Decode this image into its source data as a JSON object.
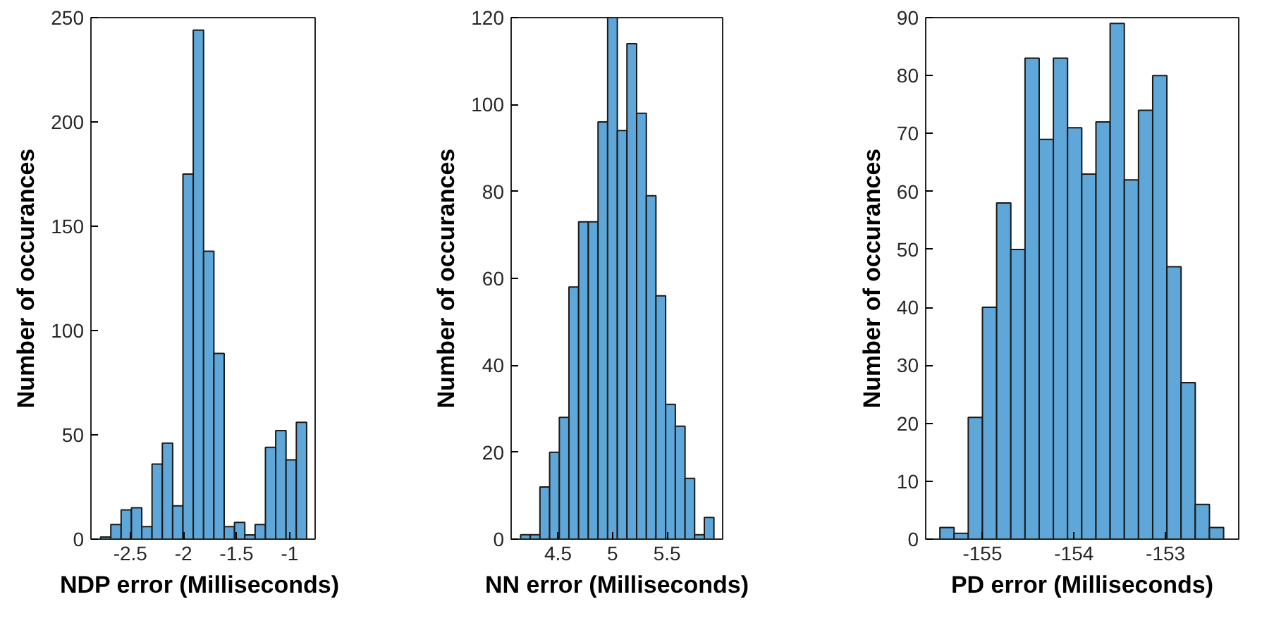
{
  "chart_data": [
    {
      "type": "histogram",
      "xlabel": "NDP error  (Milliseconds)",
      "ylabel": "Number of occurances",
      "color": "#5fa7d8",
      "bins": [
        -2.78,
        -2.683,
        -2.586,
        -2.489,
        -2.392,
        -2.295,
        -2.198,
        -2.101,
        -2.004,
        -1.907,
        -1.81,
        -1.713,
        -1.616,
        -1.519,
        -1.422,
        -1.325,
        -1.228,
        -1.131,
        -1.034,
        -0.937,
        -0.84
      ],
      "values": [
        1,
        7,
        14,
        15,
        6,
        36,
        46,
        16,
        175,
        244,
        138,
        89,
        6,
        8,
        2,
        7,
        44,
        52,
        38,
        56
      ],
      "xlim": [
        -2.87,
        -0.76
      ],
      "ylim": [
        0,
        250
      ],
      "xticks": [
        -2.5,
        -2,
        -1.5,
        -1
      ],
      "yticks": [
        0,
        50,
        100,
        150,
        200,
        250
      ],
      "grid": false
    },
    {
      "type": "histogram",
      "xlabel": "NN error (Milliseconds)",
      "ylabel": "Number of occurances",
      "color": "#5fa7d8",
      "bins": [
        4.157,
        4.246,
        4.334,
        4.423,
        4.512,
        4.6,
        4.689,
        4.778,
        4.867,
        4.955,
        5.044,
        5.132,
        5.221,
        5.31,
        5.398,
        5.487,
        5.576,
        5.665,
        5.753,
        5.842,
        5.93
      ],
      "values": [
        1,
        1,
        12,
        20,
        28,
        58,
        73,
        73,
        96,
        120,
        94,
        114,
        98,
        79,
        56,
        31,
        26,
        14,
        1,
        5
      ],
      "xlim": [
        4.07,
        6.01
      ],
      "ylim": [
        0,
        120
      ],
      "xticks": [
        4.5,
        5,
        5.5
      ],
      "yticks": [
        0,
        20,
        40,
        60,
        80,
        100,
        120
      ],
      "grid": false
    },
    {
      "type": "histogram",
      "xlabel": "PD error (Milliseconds)",
      "ylabel": "Number of occurances",
      "color": "#5fa7d8",
      "bins": [
        -155.465,
        -155.31,
        -155.155,
        -155.0,
        -154.845,
        -154.69,
        -154.535,
        -154.38,
        -154.225,
        -154.07,
        -153.915,
        -153.76,
        -153.605,
        -153.45,
        -153.295,
        -153.14,
        -152.985,
        -152.83,
        -152.675,
        -152.52,
        -152.365
      ],
      "values": [
        2,
        1,
        21,
        40,
        58,
        50,
        83,
        69,
        83,
        71,
        63,
        72,
        89,
        62,
        74,
        80,
        47,
        27,
        6,
        2
      ],
      "xlim": [
        -155.62,
        -152.2
      ],
      "ylim": [
        0,
        90
      ],
      "xticks": [
        -155,
        -154,
        -153
      ],
      "yticks": [
        0,
        10,
        20,
        30,
        40,
        50,
        60,
        70,
        80,
        90
      ],
      "grid": false
    }
  ]
}
